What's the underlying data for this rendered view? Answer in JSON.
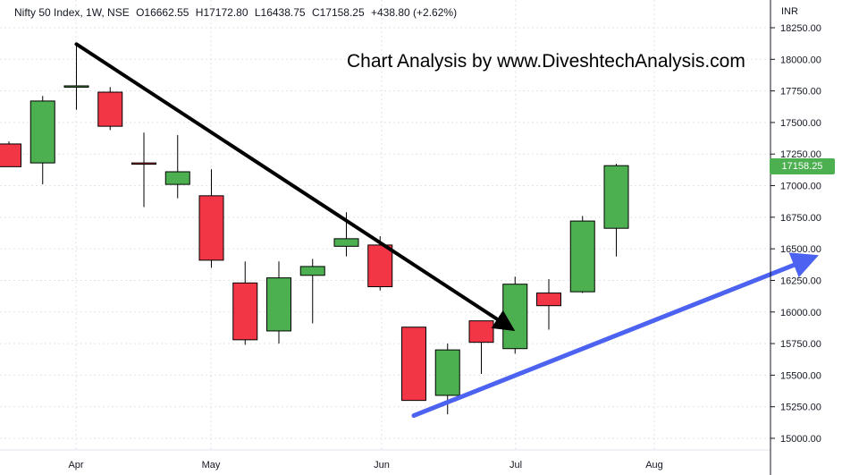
{
  "header": {
    "symbol": "Nifty 50 Index, 1W, NSE",
    "open": "O16662.55",
    "high": "H17172.80",
    "low": "L16438.75",
    "close": "C17158.25",
    "change": "+438.80 (+2.62%)"
  },
  "watermark": "Chart Analysis by www.DiveshtechAnalysis.com",
  "currency": "INR",
  "last_price_label": "17158.25",
  "colors": {
    "up": "#4caf50",
    "down": "#f23645",
    "grid": "#e0e3eb",
    "black_arrow": "#000000",
    "blue_arrow": "#4c62f0",
    "axis_text": "#131722"
  },
  "chart_data": {
    "type": "candlestick",
    "title": "",
    "xlabel": "",
    "ylabel": "",
    "ylim": [
      14900,
      18350
    ],
    "x_ticks": [
      "Apr",
      "May",
      "Jun",
      "Jul",
      "Aug"
    ],
    "y_ticks": [
      "15000.00",
      "15250.00",
      "15500.00",
      "15750.00",
      "16000.00",
      "16250.00",
      "16500.00",
      "16750.00",
      "17000.00",
      "17250.00",
      "17500.00",
      "17750.00",
      "18000.00",
      "18250.00"
    ],
    "candles": [
      {
        "week": "Mar 21",
        "open": 17330,
        "high": 17350,
        "low": 17150,
        "close": 17150
      },
      {
        "week": "Mar 28",
        "open": 17180,
        "high": 17710,
        "low": 17010,
        "close": 17670
      },
      {
        "week": "Apr 04",
        "open": 17790,
        "high": 18110,
        "low": 17600,
        "close": 17790
      },
      {
        "week": "Apr 11",
        "open": 17740,
        "high": 17780,
        "low": 17440,
        "close": 17470
      },
      {
        "week": "Apr 18",
        "open": 17180,
        "high": 17420,
        "low": 16830,
        "close": 17170
      },
      {
        "week": "Apr 25",
        "open": 17010,
        "high": 17400,
        "low": 16900,
        "close": 17110
      },
      {
        "week": "May 02",
        "open": 16920,
        "high": 17130,
        "low": 16350,
        "close": 16410
      },
      {
        "week": "May 09",
        "open": 16230,
        "high": 16400,
        "low": 15740,
        "close": 15780
      },
      {
        "week": "May 16",
        "open": 15850,
        "high": 16400,
        "low": 15750,
        "close": 16270
      },
      {
        "week": "May 23",
        "open": 16290,
        "high": 16420,
        "low": 15910,
        "close": 16360
      },
      {
        "week": "May 30",
        "open": 16520,
        "high": 16790,
        "low": 16440,
        "close": 16580
      },
      {
        "week": "Jun 06",
        "open": 16530,
        "high": 16600,
        "low": 16170,
        "close": 16200
      },
      {
        "week": "Jun 13",
        "open": 15880,
        "high": 15880,
        "low": 15300,
        "close": 15300
      },
      {
        "week": "Jun 20",
        "open": 15340,
        "high": 15750,
        "low": 15190,
        "close": 15700
      },
      {
        "week": "Jun 27",
        "open": 15930,
        "high": 15930,
        "low": 15510,
        "close": 15760
      },
      {
        "week": "Jul 04",
        "open": 15710,
        "high": 16280,
        "low": 15670,
        "close": 16220
      },
      {
        "week": "Jul 11",
        "open": 16150,
        "high": 16260,
        "low": 15860,
        "close": 16050
      },
      {
        "week": "Jul 18",
        "open": 16160,
        "high": 16760,
        "low": 16150,
        "close": 16720
      },
      {
        "week": "Jul 25",
        "open": 16662.55,
        "high": 17172.8,
        "low": 16438.75,
        "close": 17158.25
      }
    ],
    "annotations": [
      {
        "type": "arrow",
        "color": "black",
        "from": {
          "week": "Apr 04",
          "price": 18120
        },
        "to": {
          "week": "Jul 04",
          "price": 15850
        }
      },
      {
        "type": "arrow",
        "color": "blue",
        "from": {
          "week": "Jun 13",
          "price": 15180
        },
        "to": {
          "week": "Aug 29",
          "price": 16450
        }
      }
    ]
  }
}
